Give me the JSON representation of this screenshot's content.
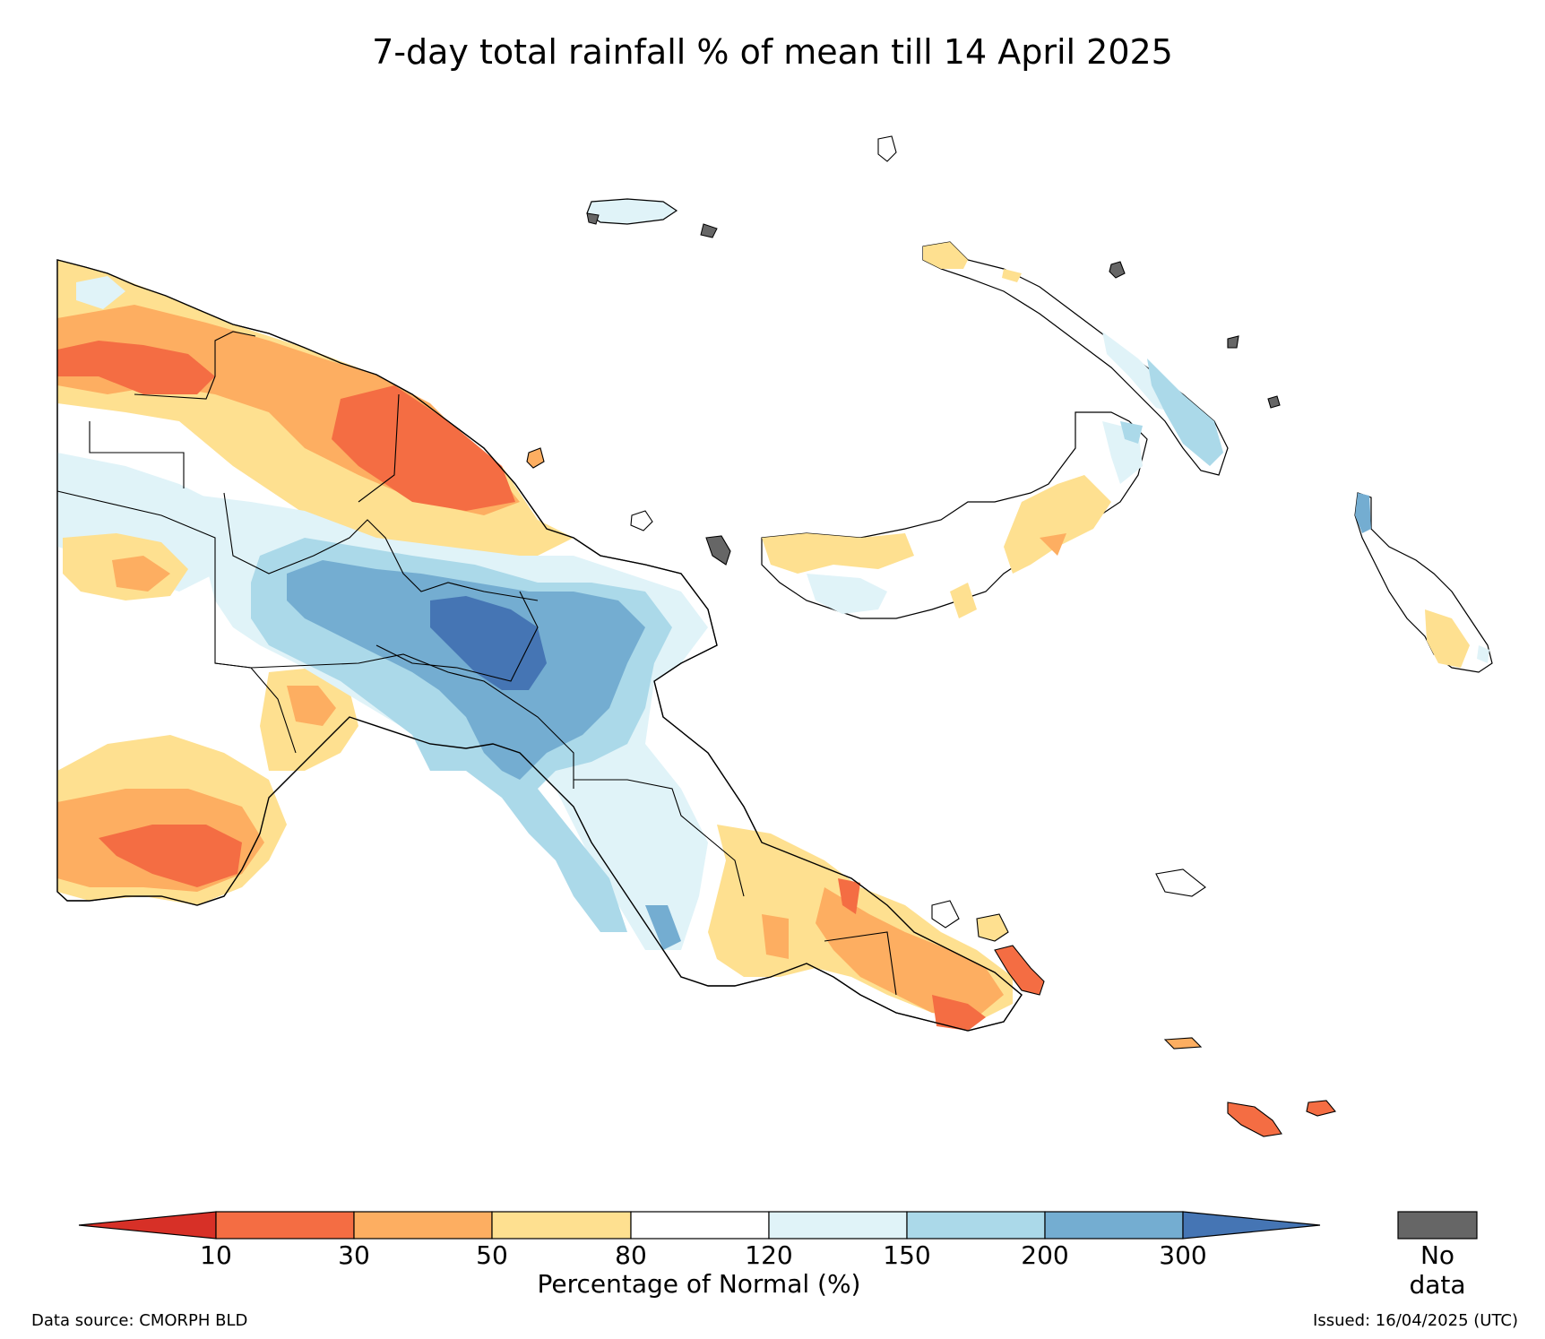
{
  "title": "7-day total rainfall % of mean till 14 April 2025",
  "colorbar": {
    "ticks": [
      "10",
      "30",
      "50",
      "80",
      "120",
      "150",
      "200",
      "300"
    ],
    "label": "Percentage of Normal (%)",
    "colors": {
      "below_10": "#d73027",
      "10_30": "#f46d43",
      "30_50": "#fdae61",
      "50_80": "#fee090",
      "80_120": "#ffffff",
      "120_150": "#e0f3f8",
      "150_200": "#abd9e9",
      "200_300": "#74add1",
      "above_300": "#4575b4"
    }
  },
  "nodata": {
    "label": "No data",
    "color": "#666666"
  },
  "footer": {
    "source": "Data source: CMORPH BLD",
    "issued": "Issued: 16/04/2025 (UTC)"
  }
}
